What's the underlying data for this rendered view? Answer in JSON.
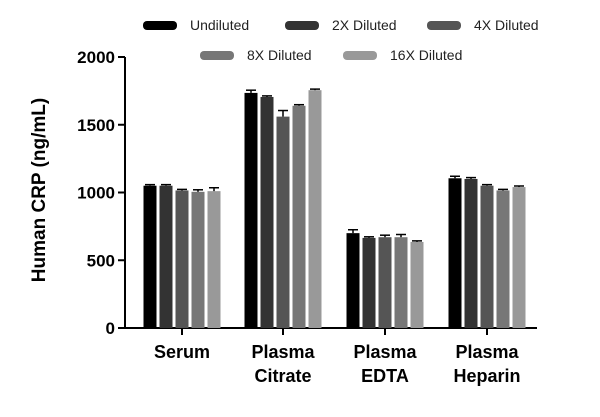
{
  "chart_data": {
    "type": "bar",
    "title": "",
    "xlabel": "",
    "ylabel": "Human CRP (ng/mL)",
    "ylim": [
      0,
      2000
    ],
    "yticks": [
      "0",
      "500",
      "1000",
      "1500",
      "2000"
    ],
    "categories": [
      [
        "Serum"
      ],
      [
        "Plasma",
        "Citrate"
      ],
      [
        "Plasma",
        "EDTA"
      ],
      [
        "Plasma",
        "Heparin"
      ]
    ],
    "legend_position": "top",
    "series": [
      {
        "name": "Undiluted",
        "color": "#000000",
        "values": [
          1050,
          1735,
          700,
          1105
        ],
        "errors": [
          8,
          20,
          25,
          15
        ]
      },
      {
        "name": "2X Diluted",
        "color": "#333333",
        "values": [
          1050,
          1705,
          665,
          1100
        ],
        "errors": [
          8,
          8,
          8,
          10
        ]
      },
      {
        "name": "4X Diluted",
        "color": "#555555",
        "values": [
          1015,
          1560,
          670,
          1050
        ],
        "errors": [
          8,
          45,
          15,
          8
        ]
      },
      {
        "name": "8X Diluted",
        "color": "#777777",
        "values": [
          1005,
          1640,
          670,
          1015
        ],
        "errors": [
          15,
          8,
          20,
          8
        ]
      },
      {
        "name": "16X Diluted",
        "color": "#999999",
        "values": [
          1010,
          1755,
          635,
          1040
        ],
        "errors": [
          25,
          8,
          8,
          8
        ]
      }
    ]
  }
}
